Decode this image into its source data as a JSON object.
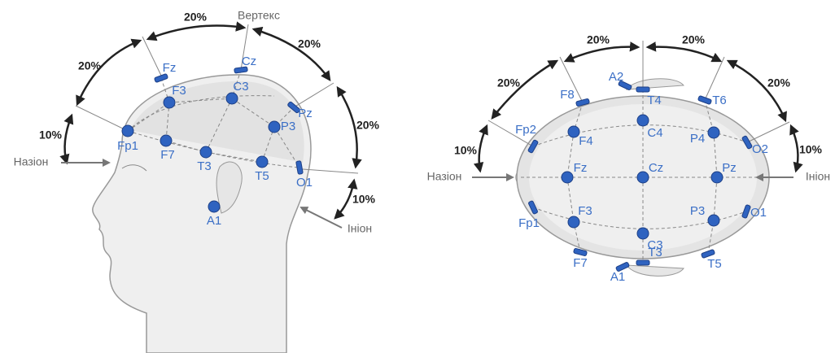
{
  "left": {
    "measures": [
      "20%",
      "20%",
      "20%",
      "10%",
      "20%",
      "10%"
    ],
    "vertex": "Вертекс",
    "nasion": "Назіон",
    "inion": "Ініон",
    "electrodes": [
      "Fz",
      "Cz",
      "F3",
      "C3",
      "Pz",
      "P3",
      "Fp1",
      "F7",
      "T3",
      "T5",
      "O1",
      "A1"
    ]
  },
  "right": {
    "measures": [
      "20%",
      "20%",
      "20%",
      "20%",
      "10%",
      "10%"
    ],
    "nasion": "Назіон",
    "inion": "Ініон",
    "electrodes": [
      "A2",
      "T4",
      "F8",
      "T6",
      "Fp2",
      "F4",
      "C4",
      "P4",
      "O2",
      "Fz",
      "Cz",
      "Pz",
      "F3",
      "C3",
      "P3",
      "O1",
      "Fp1",
      "T3",
      "T5",
      "F7",
      "A1"
    ]
  }
}
